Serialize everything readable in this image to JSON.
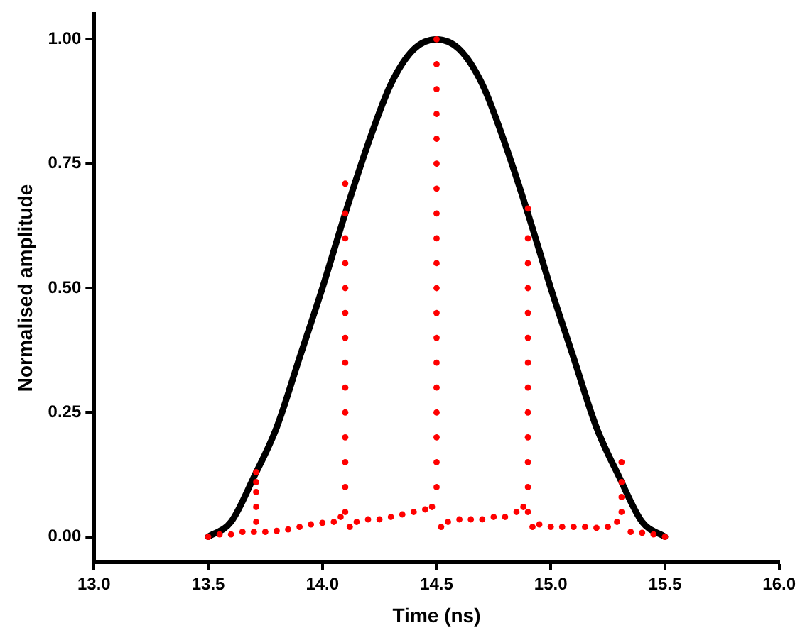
{
  "chart_data": {
    "type": "scatter",
    "xlabel": "Time (ns)",
    "ylabel": "Normalised amplitude",
    "xlim": [
      13.0,
      16.0
    ],
    "ylim": [
      -0.05,
      1.05
    ],
    "xticks": [
      {
        "value": 13,
        "label": "13.0"
      },
      {
        "value": 13.5,
        "label": "13.5"
      },
      {
        "value": 14,
        "label": "14.0"
      },
      {
        "value": 14.5,
        "label": "14.5"
      },
      {
        "value": 15,
        "label": "15.0"
      },
      {
        "value": 15.5,
        "label": "15.5"
      },
      {
        "value": 16,
        "label": "16.0"
      }
    ],
    "yticks": [
      {
        "value": 0,
        "label": "0.00"
      },
      {
        "value": 0.25,
        "label": "0.25"
      },
      {
        "value": 0.5,
        "label": "0.50"
      },
      {
        "value": 0.75,
        "label": "0.75"
      },
      {
        "value": 1,
        "label": "1.00"
      }
    ],
    "series": [
      {
        "color": "#ff0000",
        "marker": "circle",
        "x": [
          13.5,
          13.55,
          13.6,
          13.65,
          13.7,
          13.71,
          13.71,
          13.71,
          13.71,
          13.71,
          13.75,
          13.8,
          13.85,
          13.9,
          13.95,
          14.0,
          14.05,
          14.08,
          14.1,
          14.1,
          14.1,
          14.1,
          14.1,
          14.1,
          14.1,
          14.1,
          14.1,
          14.1,
          14.1,
          14.1,
          14.1,
          14.1,
          14.12,
          14.15,
          14.2,
          14.25,
          14.3,
          14.35,
          14.4,
          14.45,
          14.48,
          14.5,
          14.5,
          14.5,
          14.5,
          14.5,
          14.5,
          14.5,
          14.5,
          14.5,
          14.5,
          14.5,
          14.5,
          14.5,
          14.5,
          14.5,
          14.5,
          14.5,
          14.5,
          14.5,
          14.52,
          14.55,
          14.6,
          14.65,
          14.7,
          14.75,
          14.8,
          14.85,
          14.88,
          14.9,
          14.9,
          14.9,
          14.9,
          14.9,
          14.9,
          14.9,
          14.9,
          14.9,
          14.9,
          14.9,
          14.9,
          14.9,
          14.92,
          14.95,
          15.0,
          15.05,
          15.1,
          15.15,
          15.2,
          15.25,
          15.29,
          15.31,
          15.31,
          15.31,
          15.31,
          15.35,
          15.4,
          15.45,
          15.5
        ],
        "values": [
          0,
          0.005,
          0.005,
          0.01,
          0.01,
          0.03,
          0.06,
          0.09,
          0.11,
          0.13,
          0.01,
          0.012,
          0.015,
          0.02,
          0.025,
          0.028,
          0.03,
          0.04,
          0.05,
          0.1,
          0.15,
          0.2,
          0.25,
          0.3,
          0.35,
          0.4,
          0.45,
          0.5,
          0.55,
          0.6,
          0.65,
          0.71,
          0.02,
          0.03,
          0.035,
          0.035,
          0.04,
          0.045,
          0.05,
          0.055,
          0.06,
          0.1,
          0.15,
          0.2,
          0.25,
          0.3,
          0.35,
          0.4,
          0.45,
          0.5,
          0.55,
          0.6,
          0.65,
          0.7,
          0.75,
          0.8,
          0.85,
          0.9,
          0.95,
          1.0,
          0.02,
          0.03,
          0.035,
          0.035,
          0.035,
          0.04,
          0.04,
          0.05,
          0.06,
          0.05,
          0.1,
          0.15,
          0.2,
          0.25,
          0.3,
          0.35,
          0.4,
          0.45,
          0.5,
          0.55,
          0.6,
          0.66,
          0.02,
          0.025,
          0.02,
          0.02,
          0.02,
          0.02,
          0.018,
          0.02,
          0.03,
          0.05,
          0.08,
          0.11,
          0.15,
          0.01,
          0.008,
          0.005,
          0
        ]
      },
      {
        "type": "line",
        "color": "#000000",
        "x": [
          13.5,
          13.6,
          13.7,
          13.8,
          13.9,
          14.0,
          14.1,
          14.2,
          14.3,
          14.4,
          14.5,
          14.6,
          14.7,
          14.8,
          14.9,
          15.0,
          15.1,
          15.2,
          15.3,
          15.4,
          15.5
        ],
        "values": [
          0,
          0.03,
          0.12,
          0.22,
          0.36,
          0.5,
          0.65,
          0.79,
          0.91,
          0.98,
          1.0,
          0.98,
          0.91,
          0.79,
          0.65,
          0.5,
          0.36,
          0.22,
          0.12,
          0.03,
          0
        ]
      }
    ]
  }
}
